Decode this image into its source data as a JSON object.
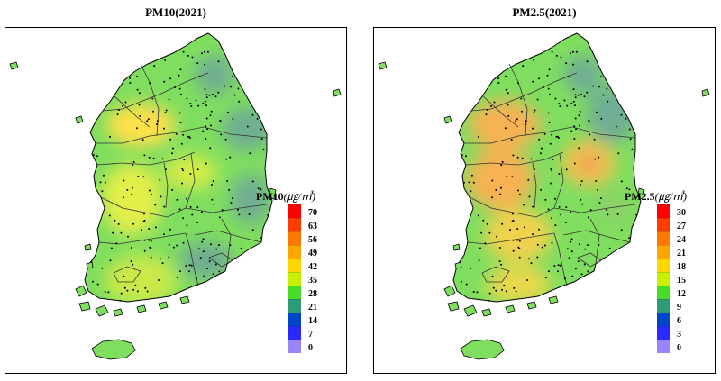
{
  "maps": [
    {
      "id": "pm10",
      "title": "PM10(2021)",
      "legend": {
        "title_prefix": "PM10",
        "title_unit": "(㎍/㎥)",
        "ticks": [
          "70",
          "63",
          "56",
          "49",
          "42",
          "35",
          "28",
          "21",
          "14",
          "7",
          "0"
        ],
        "colors": [
          "#ff0000",
          "#ff3c00",
          "#ff7800",
          "#ffa500",
          "#ffd700",
          "#c8f000",
          "#46dc28",
          "#2e9b77",
          "#0045c8",
          "#2a2aff",
          "#9a84ff"
        ]
      },
      "zones": [
        {
          "cx": 150,
          "cy": 108,
          "rx": 38,
          "ry": 24,
          "color": "#ffe04a"
        },
        {
          "cx": 140,
          "cy": 190,
          "rx": 34,
          "ry": 40,
          "color": "#e2ee48"
        },
        {
          "cx": 205,
          "cy": 160,
          "rx": 30,
          "ry": 20,
          "color": "#d4ec46"
        },
        {
          "cx": 150,
          "cy": 280,
          "rx": 40,
          "ry": 28,
          "color": "#cbe94a"
        },
        {
          "cx": 232,
          "cy": 52,
          "rx": 22,
          "ry": 22,
          "color": "#6fae93"
        },
        {
          "cx": 268,
          "cy": 112,
          "rx": 28,
          "ry": 24,
          "color": "#6fae93"
        },
        {
          "cx": 272,
          "cy": 190,
          "rx": 22,
          "ry": 28,
          "color": "#6fae93"
        },
        {
          "cx": 222,
          "cy": 258,
          "rx": 30,
          "ry": 20,
          "color": "#6fae93"
        }
      ]
    },
    {
      "id": "pm25",
      "title": "PM2.5(2021)",
      "legend": {
        "title_prefix": "PM2.5",
        "title_unit": "(㎍/㎥)",
        "ticks": [
          "30",
          "27",
          "24",
          "21",
          "18",
          "15",
          "12",
          "9",
          "6",
          "3",
          "0"
        ],
        "colors": [
          "#ff0000",
          "#ff3c00",
          "#ff7800",
          "#ffa500",
          "#ffd700",
          "#c8f000",
          "#46dc28",
          "#2e9b77",
          "#0045c8",
          "#2a2aff",
          "#9a84ff"
        ]
      },
      "zones": [
        {
          "cx": 145,
          "cy": 108,
          "rx": 40,
          "ry": 28,
          "color": "#f6b253"
        },
        {
          "cx": 140,
          "cy": 168,
          "rx": 38,
          "ry": 34,
          "color": "#f6b253"
        },
        {
          "cx": 160,
          "cy": 230,
          "rx": 38,
          "ry": 30,
          "color": "#efd24e"
        },
        {
          "cx": 238,
          "cy": 150,
          "rx": 30,
          "ry": 26,
          "color": "#f0c24e"
        },
        {
          "cx": 238,
          "cy": 150,
          "rx": 10,
          "ry": 9,
          "color": "#f08a5a"
        },
        {
          "cx": 160,
          "cy": 285,
          "rx": 36,
          "ry": 22,
          "color": "#e8d84c"
        },
        {
          "cx": 232,
          "cy": 52,
          "rx": 22,
          "ry": 22,
          "color": "#6fae93"
        },
        {
          "cx": 264,
          "cy": 96,
          "rx": 28,
          "ry": 32,
          "color": "#6fae93"
        },
        {
          "cx": 265,
          "cy": 200,
          "rx": 18,
          "ry": 16,
          "color": "#8fcf6a"
        }
      ]
    }
  ]
}
